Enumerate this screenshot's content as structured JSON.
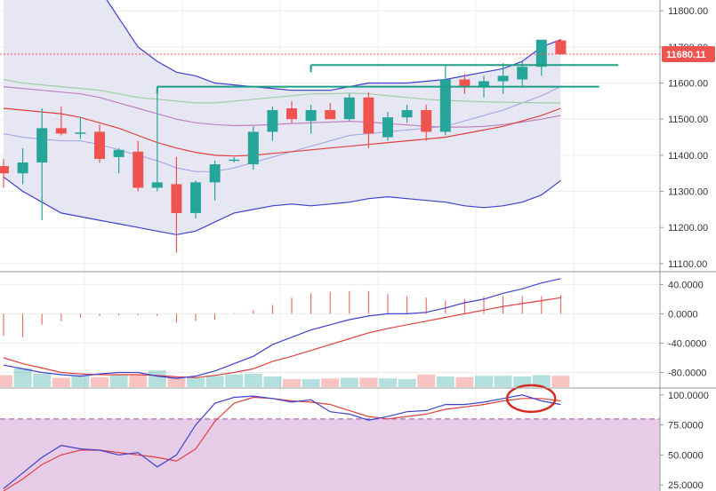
{
  "colors": {
    "up": "#26a69a",
    "down": "#ef5350",
    "band_fill": "#e3e3f2",
    "band_line": "#3f3fd0",
    "ma_fast": "#e04040",
    "ma_mid": "#c080c0",
    "ma_slow": "#9fcfa5",
    "macd": "#4040d0",
    "signal": "#e04040",
    "stoch_zone": "#e6cce6",
    "stoch_dash": "#a050a0",
    "trendline": "#1f9e86",
    "highlight": "#d62a1e",
    "price_tag": "#ef5350",
    "grid": "#ececec",
    "axis": "#9a9a9a"
  },
  "current_price": {
    "value": 11680.11,
    "label": "11680.11"
  },
  "chart_data": [
    {
      "type": "candlestick",
      "panel": "price",
      "title": "",
      "ylim": [
        11080,
        11830
      ],
      "y_ticks": [
        {
          "value": 11100,
          "label": "11100.00"
        },
        {
          "value": 11200,
          "label": "11200.00"
        },
        {
          "value": 11300,
          "label": "11300.00"
        },
        {
          "value": 11400,
          "label": "11400.00"
        },
        {
          "value": 11500,
          "label": "11500.00"
        },
        {
          "value": 11600,
          "label": "11600.00"
        },
        {
          "value": 11700,
          "label": "11700.00"
        },
        {
          "value": 11800,
          "label": "11800.00"
        }
      ],
      "candles": [
        {
          "o": 11370,
          "h": 11390,
          "l": 11310,
          "c": 11350
        },
        {
          "o": 11350,
          "h": 11420,
          "l": 11320,
          "c": 11380
        },
        {
          "o": 11380,
          "h": 11530,
          "l": 11220,
          "c": 11475
        },
        {
          "o": 11475,
          "h": 11535,
          "l": 11455,
          "c": 11460
        },
        {
          "o": 11460,
          "h": 11505,
          "l": 11445,
          "c": 11463
        },
        {
          "o": 11465,
          "h": 11485,
          "l": 11380,
          "c": 11390
        },
        {
          "o": 11395,
          "h": 11420,
          "l": 11350,
          "c": 11415
        },
        {
          "o": 11410,
          "h": 11440,
          "l": 11300,
          "c": 11310
        },
        {
          "o": 11310,
          "h": 11590,
          "l": 11300,
          "c": 11325
        },
        {
          "o": 11320,
          "h": 11395,
          "l": 11130,
          "c": 11240
        },
        {
          "o": 11240,
          "h": 11330,
          "l": 11225,
          "c": 11325
        },
        {
          "o": 11325,
          "h": 11385,
          "l": 11275,
          "c": 11375
        },
        {
          "o": 11385,
          "h": 11395,
          "l": 11380,
          "c": 11388
        },
        {
          "o": 11375,
          "h": 11480,
          "l": 11360,
          "c": 11465
        },
        {
          "o": 11465,
          "h": 11535,
          "l": 11440,
          "c": 11525
        },
        {
          "o": 11530,
          "h": 11550,
          "l": 11490,
          "c": 11500
        },
        {
          "o": 11495,
          "h": 11540,
          "l": 11460,
          "c": 11525
        },
        {
          "o": 11525,
          "h": 11545,
          "l": 11500,
          "c": 11500
        },
        {
          "o": 11500,
          "h": 11570,
          "l": 11495,
          "c": 11560
        },
        {
          "o": 11560,
          "h": 11575,
          "l": 11420,
          "c": 11460
        },
        {
          "o": 11450,
          "h": 11520,
          "l": 11440,
          "c": 11505
        },
        {
          "o": 11505,
          "h": 11540,
          "l": 11490,
          "c": 11525
        },
        {
          "o": 11525,
          "h": 11540,
          "l": 11440,
          "c": 11465
        },
        {
          "o": 11465,
          "h": 11650,
          "l": 11455,
          "c": 11610
        },
        {
          "o": 11610,
          "h": 11625,
          "l": 11570,
          "c": 11590
        },
        {
          "o": 11590,
          "h": 11620,
          "l": 11560,
          "c": 11605
        },
        {
          "o": 11605,
          "h": 11655,
          "l": 11570,
          "c": 11620
        },
        {
          "o": 11610,
          "h": 11660,
          "l": 11590,
          "c": 11645
        },
        {
          "o": 11645,
          "h": 11720,
          "l": 11620,
          "c": 11720
        },
        {
          "o": 11718,
          "h": 11722,
          "l": 11678,
          "c": 11680
        }
      ],
      "bollinger_upper": [
        11900,
        11940,
        11960,
        11970,
        11940,
        11860,
        11780,
        11700,
        11660,
        11630,
        11620,
        11600,
        11595,
        11590,
        11585,
        11580,
        11580,
        11580,
        11590,
        11600,
        11600,
        11600,
        11605,
        11610,
        11620,
        11630,
        11640,
        11660,
        11700,
        11720
      ],
      "bollinger_lower": [
        11340,
        11300,
        11270,
        11240,
        11230,
        11220,
        11210,
        11200,
        11190,
        11180,
        11190,
        11215,
        11240,
        11250,
        11260,
        11265,
        11260,
        11265,
        11270,
        11280,
        11285,
        11280,
        11275,
        11270,
        11260,
        11255,
        11260,
        11270,
        11290,
        11330
      ],
      "bollinger_mid": [
        11460,
        11450,
        11445,
        11440,
        11440,
        11430,
        11415,
        11400,
        11385,
        11365,
        11355,
        11355,
        11365,
        11380,
        11395,
        11410,
        11425,
        11440,
        11455,
        11460,
        11465,
        11470,
        11475,
        11480,
        11495,
        11510,
        11525,
        11545,
        11565,
        11590
      ],
      "ma_fast": [
        11530,
        11525,
        11520,
        11515,
        11505,
        11490,
        11475,
        11455,
        11435,
        11420,
        11408,
        11400,
        11398,
        11400,
        11405,
        11410,
        11415,
        11420,
        11425,
        11430,
        11435,
        11440,
        11445,
        11450,
        11460,
        11470,
        11480,
        11495,
        11510,
        11530
      ],
      "ma_slow": [
        11610,
        11600,
        11595,
        11590,
        11585,
        11580,
        11570,
        11560,
        11555,
        11550,
        11545,
        11545,
        11550,
        11555,
        11560,
        11565,
        11570,
        11570,
        11572,
        11570,
        11565,
        11560,
        11555,
        11552,
        11550,
        11548,
        11547,
        11546,
        11545,
        11545
      ],
      "ma_mid": [
        11590,
        11585,
        11580,
        11575,
        11570,
        11560,
        11545,
        11530,
        11515,
        11500,
        11490,
        11485,
        11482,
        11483,
        11485,
        11488,
        11490,
        11492,
        11494,
        11492,
        11488,
        11484,
        11480,
        11478,
        11478,
        11480,
        11485,
        11492,
        11500,
        11510
      ],
      "trendlines": [
        {
          "from_index": 8,
          "to_index": 31,
          "value": 11590
        },
        {
          "from_index": 16,
          "to_index": 32,
          "value": 11650
        }
      ]
    },
    {
      "type": "macd",
      "panel": "macd",
      "ylim": [
        -100,
        55
      ],
      "y_ticks": [
        {
          "value": 40,
          "label": "40.0000"
        },
        {
          "value": 0,
          "label": "0.0000"
        },
        {
          "value": -40,
          "label": "-40.0000"
        },
        {
          "value": -80,
          "label": "-80.0000"
        }
      ],
      "histogram": [
        -30,
        -32,
        -15,
        -10,
        -5,
        -3,
        -2,
        -2,
        -3,
        -12,
        -10,
        -8,
        1,
        5,
        12,
        22,
        28,
        30,
        31,
        31,
        27,
        24,
        22,
        18,
        20,
        23,
        24,
        24,
        24,
        26
      ],
      "macd_line": [
        -70,
        -75,
        -80,
        -83,
        -85,
        -82,
        -80,
        -80,
        -85,
        -88,
        -85,
        -78,
        -68,
        -58,
        -42,
        -32,
        -22,
        -15,
        -8,
        -3,
        0,
        0,
        2,
        8,
        15,
        20,
        28,
        34,
        42,
        48
      ],
      "signal_line": [
        -60,
        -68,
        -74,
        -80,
        -82,
        -83,
        -83,
        -83,
        -84,
        -86,
        -87,
        -84,
        -80,
        -75,
        -65,
        -58,
        -50,
        -42,
        -34,
        -26,
        -20,
        -15,
        -10,
        -5,
        0,
        5,
        10,
        14,
        18,
        22
      ],
      "volume": [
        18,
        28,
        20,
        14,
        18,
        15,
        18,
        18,
        25,
        15,
        14,
        17,
        19,
        20,
        16,
        12,
        12,
        13,
        14,
        14,
        13,
        12,
        19,
        16,
        15,
        17,
        17,
        16,
        18,
        17
      ],
      "volume_max": 40
    },
    {
      "type": "stochastic",
      "panel": "stoch",
      "ylim": [
        20,
        105
      ],
      "y_ticks": [
        {
          "value": 100,
          "label": "100.0000"
        },
        {
          "value": 75,
          "label": "75.0000"
        },
        {
          "value": 50,
          "label": "50.0000"
        },
        {
          "value": 25,
          "label": "25.0000"
        }
      ],
      "overbought": 80,
      "k_line": [
        22,
        35,
        48,
        58,
        55,
        54,
        50,
        52,
        40,
        50,
        75,
        93,
        98,
        99,
        97,
        94,
        96,
        86,
        84,
        79,
        82,
        86,
        87,
        92,
        92,
        94,
        97,
        100,
        95,
        92
      ],
      "d_line": [
        20,
        30,
        42,
        50,
        54,
        54,
        52,
        50,
        48,
        45,
        55,
        78,
        93,
        98,
        97,
        95,
        94,
        92,
        87,
        82,
        80,
        82,
        84,
        88,
        90,
        92,
        95,
        97,
        97,
        95
      ]
    }
  ]
}
